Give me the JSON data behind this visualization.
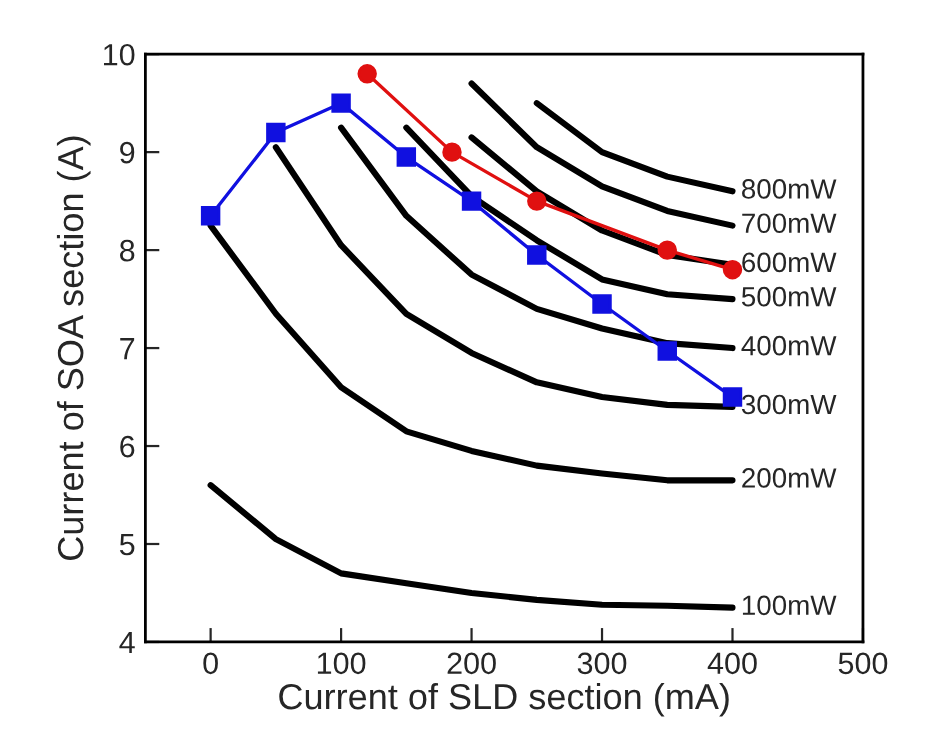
{
  "chart_data": {
    "type": "line",
    "xlabel": "Current of SLD section (mA)",
    "ylabel": "Current of SOA section (A)",
    "xlim": [
      -50,
      500
    ],
    "ylim": [
      4,
      10
    ],
    "xticks": [
      0,
      100,
      200,
      300,
      400,
      500
    ],
    "yticks": [
      4,
      5,
      6,
      7,
      8,
      9,
      10
    ],
    "grid": false,
    "legend": false,
    "series": [
      {
        "name": "100mW",
        "color": "#000000",
        "marker": "none",
        "x": [
          0,
          50,
          100,
          150,
          200,
          250,
          300,
          350,
          400
        ],
        "values": [
          5.6,
          5.05,
          4.7,
          4.6,
          4.5,
          4.43,
          4.38,
          4.37,
          4.35
        ]
      },
      {
        "name": "200mW",
        "color": "#000000",
        "marker": "none",
        "x": [
          0,
          50,
          100,
          150,
          200,
          250,
          300,
          350,
          400
        ],
        "values": [
          8.25,
          7.35,
          6.6,
          6.15,
          5.95,
          5.8,
          5.72,
          5.65,
          5.65
        ]
      },
      {
        "name": "300mW",
        "color": "#000000",
        "marker": "none",
        "x": [
          50,
          100,
          150,
          200,
          250,
          300,
          350,
          400
        ],
        "values": [
          9.05,
          8.05,
          7.35,
          6.95,
          6.65,
          6.5,
          6.42,
          6.4
        ]
      },
      {
        "name": "400mW",
        "color": "#000000",
        "marker": "none",
        "x": [
          100,
          150,
          200,
          250,
          300,
          350,
          400
        ],
        "values": [
          9.25,
          8.35,
          7.75,
          7.4,
          7.2,
          7.05,
          7.0
        ]
      },
      {
        "name": "500mW",
        "color": "#000000",
        "marker": "none",
        "x": [
          150,
          200,
          250,
          300,
          350,
          400
        ],
        "values": [
          9.25,
          8.55,
          8.1,
          7.7,
          7.55,
          7.5
        ]
      },
      {
        "name": "600mW",
        "color": "#000000",
        "marker": "none",
        "x": [
          200,
          250,
          300,
          350,
          400
        ],
        "values": [
          9.15,
          8.6,
          8.2,
          7.95,
          7.85
        ]
      },
      {
        "name": "700mW",
        "color": "#000000",
        "marker": "none",
        "x": [
          200,
          250,
          300,
          350,
          400
        ],
        "values": [
          9.7,
          9.05,
          8.65,
          8.4,
          8.25
        ]
      },
      {
        "name": "800mW",
        "color": "#000000",
        "marker": "none",
        "x": [
          250,
          300,
          350,
          400
        ],
        "values": [
          9.5,
          9.0,
          8.75,
          8.6
        ]
      },
      {
        "color": "#1010e0",
        "marker": "square",
        "x": [
          0,
          50,
          100,
          150,
          200,
          250,
          300,
          350,
          400
        ],
        "values": [
          8.35,
          9.2,
          9.5,
          8.95,
          8.5,
          7.95,
          7.45,
          6.97,
          6.5
        ]
      },
      {
        "color": "#e01010",
        "marker": "circle",
        "x": [
          120,
          185,
          250,
          350,
          400
        ],
        "values": [
          9.8,
          9.0,
          8.5,
          8.0,
          7.8
        ]
      }
    ]
  }
}
